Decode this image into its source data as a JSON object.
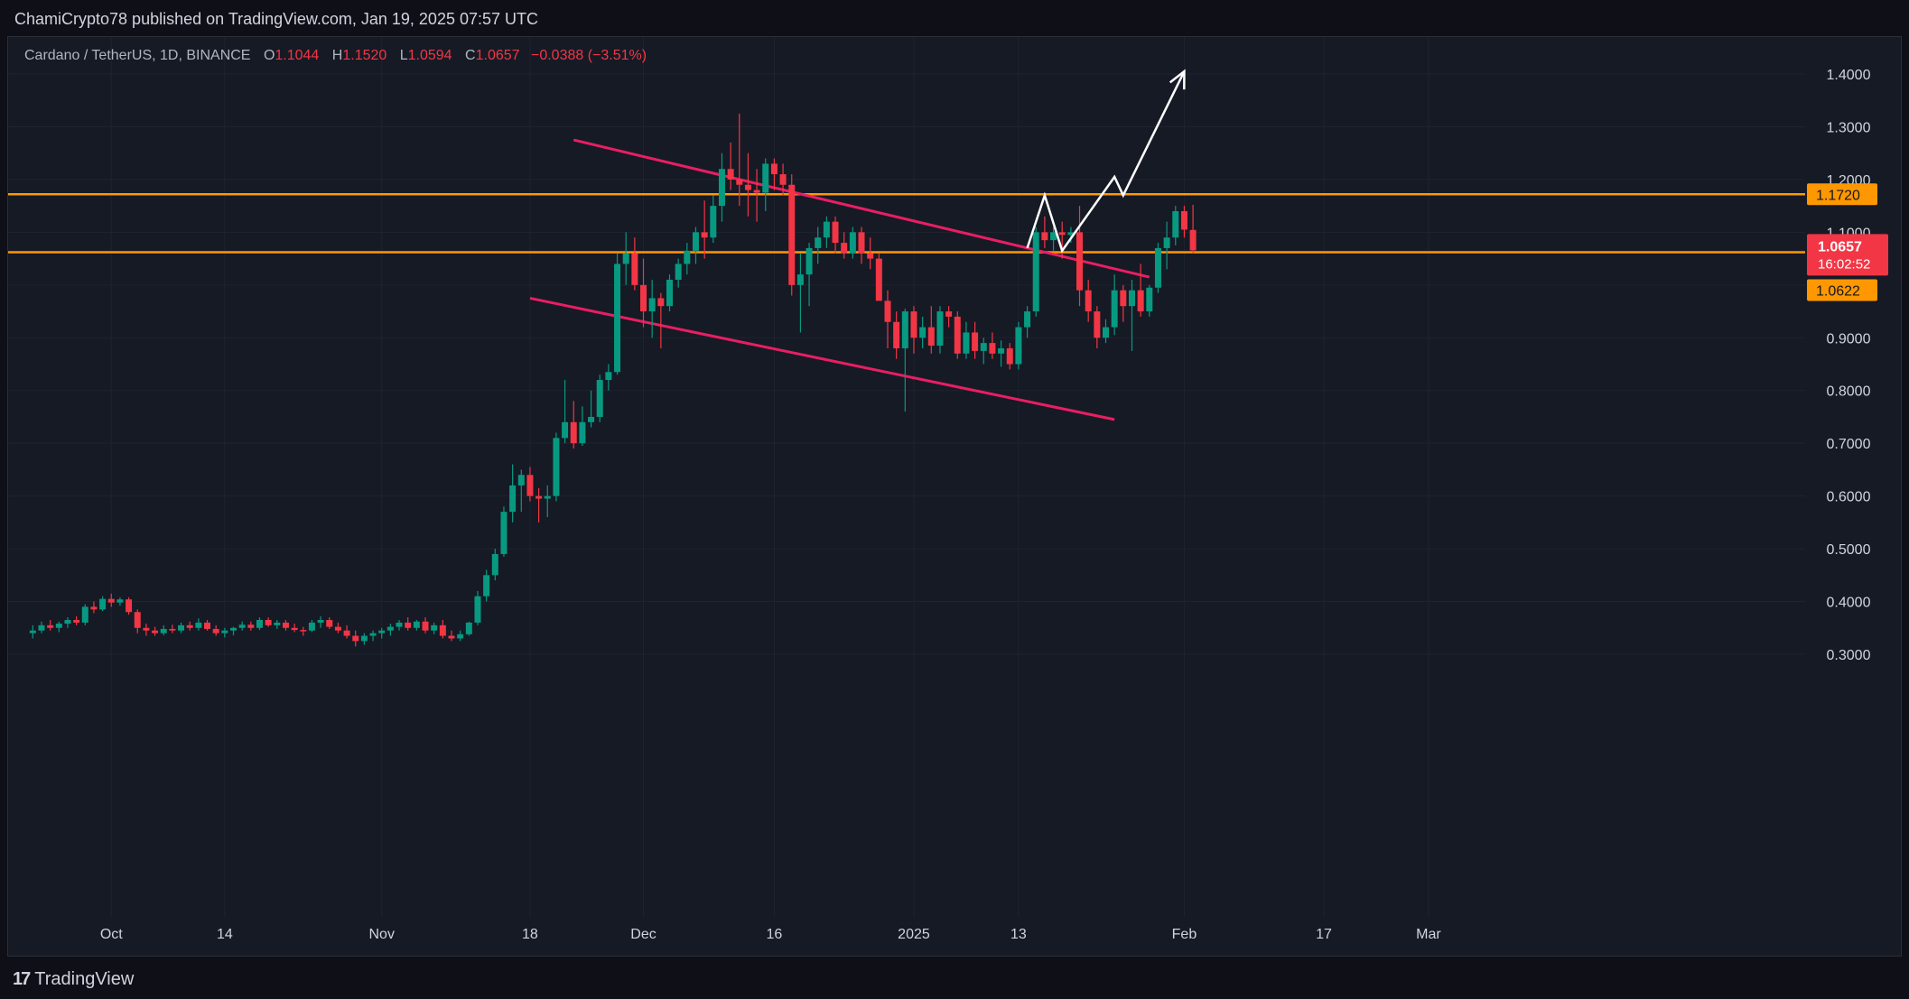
{
  "header": {
    "publisher_line": "ChamiCrypto78 published on TradingView.com, Jan 19, 2025 07:57 UTC"
  },
  "legend": {
    "symbol": "Cardano / TetherUS, 1D, BINANCE",
    "open_label": "O",
    "open": "1.1044",
    "high_label": "H",
    "high": "1.1520",
    "low_label": "L",
    "low": "1.0594",
    "close_label": "C",
    "close": "1.0657",
    "change": "−0.0388 (−3.51%)"
  },
  "footer": {
    "brand": "TradingView",
    "logo_mark": "17"
  },
  "colors": {
    "up": "#089981",
    "down": "#f23645",
    "channel": "#e91e63",
    "level": "#ff9800",
    "arrow": "#ffffff",
    "grid": "#1f2330",
    "background": "#161a25"
  },
  "chart_data": {
    "type": "candlestick",
    "symbol": "ADA/USDT",
    "interval": "1D",
    "x_tick_labels": [
      "Oct",
      "14",
      "Nov",
      "18",
      "Dec",
      "16",
      "2025",
      "13",
      "Feb",
      "17",
      "Mar"
    ],
    "x_ticks_dates": [
      "2024-10-01",
      "2024-10-14",
      "2024-11-01",
      "2024-11-18",
      "2024-12-01",
      "2024-12-16",
      "2025-01-01",
      "2025-01-13",
      "2025-02-01",
      "2025-02-17",
      "2025-03-01"
    ],
    "y_ticks": [
      "1.4000",
      "1.3000",
      "1.2000",
      "1.1000",
      "0.9000",
      "0.8000",
      "0.7000",
      "0.6000",
      "0.5000",
      "0.4000",
      "0.3000"
    ],
    "ylim": [
      0.23,
      1.5
    ],
    "grid": true,
    "price_labels": [
      {
        "text": "1.1720",
        "value": 1.172,
        "kind": "level"
      },
      {
        "text": "1.0657",
        "value": 1.0657,
        "kind": "last",
        "countdown": "16:02:52"
      },
      {
        "text": "1.0622",
        "value": 1.0622,
        "kind": "level"
      }
    ],
    "horizontal_levels": [
      1.172,
      1.0622
    ],
    "channel_lines": [
      {
        "x0": "2024-11-23",
        "y0": 1.275,
        "x1": "2025-01-28",
        "y1": 1.015
      },
      {
        "x0": "2024-11-18",
        "y0": 0.975,
        "x1": "2025-01-24",
        "y1": 0.745
      }
    ],
    "projection_path": [
      {
        "x": "2025-01-14",
        "y": 1.07
      },
      {
        "x": "2025-01-16",
        "y": 1.17
      },
      {
        "x": "2025-01-18",
        "y": 1.065
      },
      {
        "x": "2025-01-24",
        "y": 1.205
      },
      {
        "x": "2025-01-25",
        "y": 1.17
      },
      {
        "x": "2025-02-01",
        "y": 1.405
      }
    ],
    "candles": [
      {
        "d": "2024-09-22",
        "o": 0.34,
        "h": 0.355,
        "l": 0.33,
        "c": 0.345
      },
      {
        "d": "2024-09-23",
        "o": 0.345,
        "h": 0.362,
        "l": 0.34,
        "c": 0.355
      },
      {
        "d": "2024-09-24",
        "o": 0.355,
        "h": 0.365,
        "l": 0.345,
        "c": 0.35
      },
      {
        "d": "2024-09-25",
        "o": 0.35,
        "h": 0.362,
        "l": 0.342,
        "c": 0.358
      },
      {
        "d": "2024-09-26",
        "o": 0.358,
        "h": 0.37,
        "l": 0.35,
        "c": 0.365
      },
      {
        "d": "2024-09-27",
        "o": 0.365,
        "h": 0.372,
        "l": 0.355,
        "c": 0.36
      },
      {
        "d": "2024-09-28",
        "o": 0.36,
        "h": 0.395,
        "l": 0.355,
        "c": 0.39
      },
      {
        "d": "2024-09-29",
        "o": 0.39,
        "h": 0.4,
        "l": 0.378,
        "c": 0.385
      },
      {
        "d": "2024-09-30",
        "o": 0.385,
        "h": 0.41,
        "l": 0.382,
        "c": 0.405
      },
      {
        "d": "2024-10-01",
        "o": 0.405,
        "h": 0.415,
        "l": 0.39,
        "c": 0.398
      },
      {
        "d": "2024-10-02",
        "o": 0.398,
        "h": 0.408,
        "l": 0.392,
        "c": 0.404
      },
      {
        "d": "2024-10-03",
        "o": 0.404,
        "h": 0.408,
        "l": 0.375,
        "c": 0.38
      },
      {
        "d": "2024-10-04",
        "o": 0.38,
        "h": 0.385,
        "l": 0.34,
        "c": 0.35
      },
      {
        "d": "2024-10-05",
        "o": 0.35,
        "h": 0.358,
        "l": 0.335,
        "c": 0.345
      },
      {
        "d": "2024-10-06",
        "o": 0.345,
        "h": 0.352,
        "l": 0.335,
        "c": 0.34
      },
      {
        "d": "2024-10-07",
        "o": 0.34,
        "h": 0.355,
        "l": 0.336,
        "c": 0.348
      },
      {
        "d": "2024-10-08",
        "o": 0.348,
        "h": 0.356,
        "l": 0.34,
        "c": 0.345
      },
      {
        "d": "2024-10-09",
        "o": 0.345,
        "h": 0.36,
        "l": 0.34,
        "c": 0.355
      },
      {
        "d": "2024-10-10",
        "o": 0.355,
        "h": 0.362,
        "l": 0.345,
        "c": 0.35
      },
      {
        "d": "2024-10-11",
        "o": 0.35,
        "h": 0.368,
        "l": 0.345,
        "c": 0.36
      },
      {
        "d": "2024-10-12",
        "o": 0.36,
        "h": 0.365,
        "l": 0.345,
        "c": 0.348
      },
      {
        "d": "2024-10-13",
        "o": 0.348,
        "h": 0.355,
        "l": 0.335,
        "c": 0.34
      },
      {
        "d": "2024-10-14",
        "o": 0.34,
        "h": 0.35,
        "l": 0.332,
        "c": 0.345
      },
      {
        "d": "2024-10-15",
        "o": 0.345,
        "h": 0.352,
        "l": 0.336,
        "c": 0.35
      },
      {
        "d": "2024-10-16",
        "o": 0.35,
        "h": 0.362,
        "l": 0.345,
        "c": 0.356
      },
      {
        "d": "2024-10-17",
        "o": 0.356,
        "h": 0.362,
        "l": 0.345,
        "c": 0.35
      },
      {
        "d": "2024-10-18",
        "o": 0.35,
        "h": 0.37,
        "l": 0.346,
        "c": 0.365
      },
      {
        "d": "2024-10-19",
        "o": 0.365,
        "h": 0.37,
        "l": 0.352,
        "c": 0.355
      },
      {
        "d": "2024-10-20",
        "o": 0.355,
        "h": 0.365,
        "l": 0.348,
        "c": 0.36
      },
      {
        "d": "2024-10-21",
        "o": 0.36,
        "h": 0.365,
        "l": 0.345,
        "c": 0.35
      },
      {
        "d": "2024-10-22",
        "o": 0.35,
        "h": 0.358,
        "l": 0.342,
        "c": 0.346
      },
      {
        "d": "2024-10-23",
        "o": 0.346,
        "h": 0.352,
        "l": 0.335,
        "c": 0.345
      },
      {
        "d": "2024-10-24",
        "o": 0.345,
        "h": 0.365,
        "l": 0.342,
        "c": 0.36
      },
      {
        "d": "2024-10-25",
        "o": 0.36,
        "h": 0.372,
        "l": 0.35,
        "c": 0.365
      },
      {
        "d": "2024-10-26",
        "o": 0.365,
        "h": 0.37,
        "l": 0.348,
        "c": 0.352
      },
      {
        "d": "2024-10-27",
        "o": 0.352,
        "h": 0.36,
        "l": 0.34,
        "c": 0.345
      },
      {
        "d": "2024-10-28",
        "o": 0.345,
        "h": 0.355,
        "l": 0.33,
        "c": 0.335
      },
      {
        "d": "2024-10-29",
        "o": 0.335,
        "h": 0.345,
        "l": 0.315,
        "c": 0.325
      },
      {
        "d": "2024-10-30",
        "o": 0.325,
        "h": 0.34,
        "l": 0.318,
        "c": 0.335
      },
      {
        "d": "2024-10-31",
        "o": 0.335,
        "h": 0.345,
        "l": 0.325,
        "c": 0.34
      },
      {
        "d": "2024-11-01",
        "o": 0.34,
        "h": 0.35,
        "l": 0.33,
        "c": 0.345
      },
      {
        "d": "2024-11-02",
        "o": 0.345,
        "h": 0.358,
        "l": 0.335,
        "c": 0.352
      },
      {
        "d": "2024-11-03",
        "o": 0.352,
        "h": 0.365,
        "l": 0.345,
        "c": 0.36
      },
      {
        "d": "2024-11-04",
        "o": 0.36,
        "h": 0.37,
        "l": 0.345,
        "c": 0.35
      },
      {
        "d": "2024-11-05",
        "o": 0.35,
        "h": 0.365,
        "l": 0.345,
        "c": 0.362
      },
      {
        "d": "2024-11-06",
        "o": 0.362,
        "h": 0.37,
        "l": 0.34,
        "c": 0.345
      },
      {
        "d": "2024-11-07",
        "o": 0.345,
        "h": 0.36,
        "l": 0.338,
        "c": 0.355
      },
      {
        "d": "2024-11-08",
        "o": 0.355,
        "h": 0.365,
        "l": 0.33,
        "c": 0.335
      },
      {
        "d": "2024-11-09",
        "o": 0.335,
        "h": 0.345,
        "l": 0.325,
        "c": 0.33
      },
      {
        "d": "2024-11-10",
        "o": 0.33,
        "h": 0.345,
        "l": 0.325,
        "c": 0.338
      },
      {
        "d": "2024-11-11",
        "o": 0.338,
        "h": 0.362,
        "l": 0.335,
        "c": 0.36
      },
      {
        "d": "2024-11-12",
        "o": 0.36,
        "h": 0.42,
        "l": 0.355,
        "c": 0.41
      },
      {
        "d": "2024-11-13",
        "o": 0.41,
        "h": 0.46,
        "l": 0.4,
        "c": 0.45
      },
      {
        "d": "2024-11-14",
        "o": 0.45,
        "h": 0.5,
        "l": 0.44,
        "c": 0.49
      },
      {
        "d": "2024-11-15",
        "o": 0.49,
        "h": 0.58,
        "l": 0.485,
        "c": 0.57
      },
      {
        "d": "2024-11-16",
        "o": 0.57,
        "h": 0.66,
        "l": 0.55,
        "c": 0.62
      },
      {
        "d": "2024-11-17",
        "o": 0.62,
        "h": 0.65,
        "l": 0.57,
        "c": 0.64
      },
      {
        "d": "2024-11-18",
        "o": 0.64,
        "h": 0.655,
        "l": 0.59,
        "c": 0.6
      },
      {
        "d": "2024-11-19",
        "o": 0.6,
        "h": 0.615,
        "l": 0.55,
        "c": 0.595
      },
      {
        "d": "2024-11-20",
        "o": 0.595,
        "h": 0.62,
        "l": 0.56,
        "c": 0.6
      },
      {
        "d": "2024-11-21",
        "o": 0.6,
        "h": 0.72,
        "l": 0.59,
        "c": 0.71
      },
      {
        "d": "2024-11-22",
        "o": 0.71,
        "h": 0.82,
        "l": 0.7,
        "c": 0.74
      },
      {
        "d": "2024-11-23",
        "o": 0.74,
        "h": 0.78,
        "l": 0.69,
        "c": 0.7
      },
      {
        "d": "2024-11-24",
        "o": 0.7,
        "h": 0.77,
        "l": 0.695,
        "c": 0.74
      },
      {
        "d": "2024-11-25",
        "o": 0.74,
        "h": 0.8,
        "l": 0.73,
        "c": 0.75
      },
      {
        "d": "2024-11-26",
        "o": 0.75,
        "h": 0.83,
        "l": 0.74,
        "c": 0.82
      },
      {
        "d": "2024-11-27",
        "o": 0.82,
        "h": 0.85,
        "l": 0.8,
        "c": 0.835
      },
      {
        "d": "2024-11-28",
        "o": 0.835,
        "h": 1.06,
        "l": 0.83,
        "c": 1.04
      },
      {
        "d": "2024-11-29",
        "o": 1.04,
        "h": 1.1,
        "l": 1.0,
        "c": 1.06
      },
      {
        "d": "2024-11-30",
        "o": 1.06,
        "h": 1.09,
        "l": 0.99,
        "c": 1.0
      },
      {
        "d": "2024-12-01",
        "o": 1.0,
        "h": 1.05,
        "l": 0.92,
        "c": 0.95
      },
      {
        "d": "2024-12-02",
        "o": 0.95,
        "h": 1.01,
        "l": 0.9,
        "c": 0.975
      },
      {
        "d": "2024-12-03",
        "o": 0.975,
        "h": 0.985,
        "l": 0.88,
        "c": 0.96
      },
      {
        "d": "2024-12-04",
        "o": 0.96,
        "h": 1.02,
        "l": 0.95,
        "c": 1.01
      },
      {
        "d": "2024-12-05",
        "o": 1.01,
        "h": 1.05,
        "l": 0.995,
        "c": 1.04
      },
      {
        "d": "2024-12-06",
        "o": 1.04,
        "h": 1.08,
        "l": 1.02,
        "c": 1.065
      },
      {
        "d": "2024-12-07",
        "o": 1.065,
        "h": 1.11,
        "l": 1.04,
        "c": 1.1
      },
      {
        "d": "2024-12-08",
        "o": 1.1,
        "h": 1.16,
        "l": 1.05,
        "c": 1.09
      },
      {
        "d": "2024-12-09",
        "o": 1.09,
        "h": 1.17,
        "l": 1.08,
        "c": 1.15
      },
      {
        "d": "2024-12-10",
        "o": 1.15,
        "h": 1.25,
        "l": 1.12,
        "c": 1.22
      },
      {
        "d": "2024-12-11",
        "o": 1.22,
        "h": 1.27,
        "l": 1.18,
        "c": 1.2
      },
      {
        "d": "2024-12-12",
        "o": 1.2,
        "h": 1.325,
        "l": 1.15,
        "c": 1.19
      },
      {
        "d": "2024-12-13",
        "o": 1.19,
        "h": 1.25,
        "l": 1.13,
        "c": 1.18
      },
      {
        "d": "2024-12-14",
        "o": 1.18,
        "h": 1.22,
        "l": 1.12,
        "c": 1.175
      },
      {
        "d": "2024-12-15",
        "o": 1.175,
        "h": 1.24,
        "l": 1.14,
        "c": 1.23
      },
      {
        "d": "2024-12-16",
        "o": 1.23,
        "h": 1.24,
        "l": 1.18,
        "c": 1.21
      },
      {
        "d": "2024-12-17",
        "o": 1.21,
        "h": 1.23,
        "l": 1.17,
        "c": 1.19
      },
      {
        "d": "2024-12-18",
        "o": 1.19,
        "h": 1.21,
        "l": 0.98,
        "c": 1.0
      },
      {
        "d": "2024-12-19",
        "o": 1.0,
        "h": 1.06,
        "l": 0.91,
        "c": 1.02
      },
      {
        "d": "2024-12-20",
        "o": 1.02,
        "h": 1.08,
        "l": 0.96,
        "c": 1.07
      },
      {
        "d": "2024-12-21",
        "o": 1.07,
        "h": 1.11,
        "l": 1.04,
        "c": 1.09
      },
      {
        "d": "2024-12-22",
        "o": 1.09,
        "h": 1.13,
        "l": 1.07,
        "c": 1.12
      },
      {
        "d": "2024-12-23",
        "o": 1.12,
        "h": 1.13,
        "l": 1.06,
        "c": 1.08
      },
      {
        "d": "2024-12-24",
        "o": 1.08,
        "h": 1.1,
        "l": 1.05,
        "c": 1.06
      },
      {
        "d": "2024-12-25",
        "o": 1.06,
        "h": 1.11,
        "l": 1.05,
        "c": 1.1
      },
      {
        "d": "2024-12-26",
        "o": 1.1,
        "h": 1.11,
        "l": 1.04,
        "c": 1.06
      },
      {
        "d": "2024-12-27",
        "o": 1.06,
        "h": 1.09,
        "l": 1.03,
        "c": 1.05
      },
      {
        "d": "2024-12-28",
        "o": 1.05,
        "h": 1.06,
        "l": 0.98,
        "c": 0.97
      },
      {
        "d": "2024-12-29",
        "o": 0.97,
        "h": 0.99,
        "l": 0.88,
        "c": 0.93
      },
      {
        "d": "2024-12-30",
        "o": 0.93,
        "h": 0.95,
        "l": 0.86,
        "c": 0.88
      },
      {
        "d": "2024-12-31",
        "o": 0.88,
        "h": 0.955,
        "l": 0.76,
        "c": 0.95
      },
      {
        "d": "2025-01-01",
        "o": 0.95,
        "h": 0.96,
        "l": 0.87,
        "c": 0.9
      },
      {
        "d": "2025-01-02",
        "o": 0.9,
        "h": 0.94,
        "l": 0.88,
        "c": 0.92
      },
      {
        "d": "2025-01-03",
        "o": 0.92,
        "h": 0.96,
        "l": 0.87,
        "c": 0.885
      },
      {
        "d": "2025-01-04",
        "o": 0.885,
        "h": 0.96,
        "l": 0.87,
        "c": 0.95
      },
      {
        "d": "2025-01-05",
        "o": 0.95,
        "h": 0.96,
        "l": 0.92,
        "c": 0.94
      },
      {
        "d": "2025-01-06",
        "o": 0.94,
        "h": 0.95,
        "l": 0.86,
        "c": 0.87
      },
      {
        "d": "2025-01-07",
        "o": 0.87,
        "h": 0.93,
        "l": 0.86,
        "c": 0.91
      },
      {
        "d": "2025-01-08",
        "o": 0.91,
        "h": 0.93,
        "l": 0.86,
        "c": 0.875
      },
      {
        "d": "2025-01-09",
        "o": 0.875,
        "h": 0.9,
        "l": 0.85,
        "c": 0.89
      },
      {
        "d": "2025-01-10",
        "o": 0.89,
        "h": 0.91,
        "l": 0.86,
        "c": 0.87
      },
      {
        "d": "2025-01-11",
        "o": 0.87,
        "h": 0.895,
        "l": 0.845,
        "c": 0.88
      },
      {
        "d": "2025-01-12",
        "o": 0.88,
        "h": 0.89,
        "l": 0.84,
        "c": 0.85
      },
      {
        "d": "2025-01-13",
        "o": 0.85,
        "h": 0.93,
        "l": 0.84,
        "c": 0.92
      },
      {
        "d": "2025-01-14",
        "o": 0.92,
        "h": 0.96,
        "l": 0.9,
        "c": 0.95
      },
      {
        "d": "2025-01-15",
        "o": 0.95,
        "h": 1.11,
        "l": 0.94,
        "c": 1.1
      },
      {
        "d": "2025-01-16",
        "o": 1.1,
        "h": 1.13,
        "l": 1.07,
        "c": 1.085
      },
      {
        "d": "2025-01-17",
        "o": 1.085,
        "h": 1.11,
        "l": 1.065,
        "c": 1.1
      },
      {
        "d": "2025-01-18",
        "o": 1.1,
        "h": 1.12,
        "l": 1.05,
        "c": 1.095
      },
      {
        "d": "2025-01-19",
        "o": 1.095,
        "h": 1.11,
        "l": 1.08,
        "c": 1.1
      },
      {
        "d": "2025-01-20",
        "o": 1.1,
        "h": 1.15,
        "l": 0.96,
        "c": 0.99
      },
      {
        "d": "2025-01-21",
        "o": 0.99,
        "h": 1.01,
        "l": 0.93,
        "c": 0.95
      },
      {
        "d": "2025-01-22",
        "o": 0.95,
        "h": 0.96,
        "l": 0.88,
        "c": 0.9
      },
      {
        "d": "2025-01-23",
        "o": 0.9,
        "h": 0.935,
        "l": 0.89,
        "c": 0.92
      },
      {
        "d": "2025-01-24",
        "o": 0.92,
        "h": 1.02,
        "l": 0.905,
        "c": 0.99
      },
      {
        "d": "2025-01-25",
        "o": 0.99,
        "h": 1.0,
        "l": 0.93,
        "c": 0.96
      },
      {
        "d": "2025-01-26",
        "o": 0.96,
        "h": 1.01,
        "l": 0.875,
        "c": 0.99
      },
      {
        "d": "2025-01-27",
        "o": 0.99,
        "h": 1.04,
        "l": 0.94,
        "c": 0.95
      },
      {
        "d": "2025-01-28",
        "o": 0.95,
        "h": 1.0,
        "l": 0.94,
        "c": 0.995
      },
      {
        "d": "2025-01-29",
        "o": 0.995,
        "h": 1.08,
        "l": 0.985,
        "c": 1.07
      },
      {
        "d": "2025-01-30",
        "o": 1.07,
        "h": 1.12,
        "l": 1.03,
        "c": 1.09
      },
      {
        "d": "2025-01-31",
        "o": 1.09,
        "h": 1.15,
        "l": 1.075,
        "c": 1.14
      },
      {
        "d": "2025-02-01",
        "o": 1.14,
        "h": 1.15,
        "l": 1.09,
        "c": 1.105
      },
      {
        "d": "2025-02-02",
        "o": 1.1044,
        "h": 1.152,
        "l": 1.0594,
        "c": 1.0657
      }
    ]
  }
}
